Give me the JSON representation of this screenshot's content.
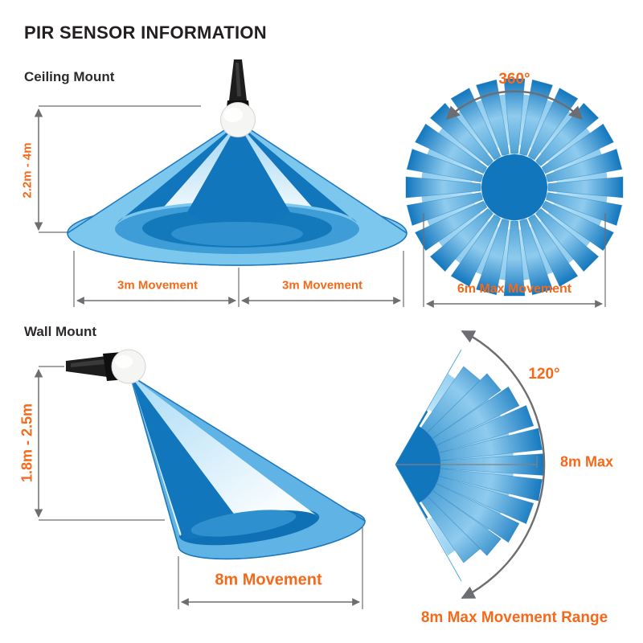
{
  "title": "PIR SENSOR INFORMATION",
  "colors": {
    "accent_orange": "#F4691A",
    "blue_dark": "#1176BC",
    "blue_medium": "#3E9DD6",
    "blue_light": "#7CC7EE",
    "line_gray": "#6D6E71"
  },
  "ceiling_mount": {
    "label": "Ceiling Mount",
    "mount_height_range": "2.2m - 4m",
    "movement_left": "3m Movement",
    "movement_right": "3m Movement",
    "top_view": {
      "coverage_angle": "360°",
      "max_movement": "6m Max Movement",
      "detection_zones": 24
    }
  },
  "wall_mount": {
    "label": "Wall Mount",
    "mount_height_range": "1.8m - 2.5m",
    "movement": "8m Movement",
    "top_view": {
      "coverage_angle": "120°",
      "max_distance": "8m Max",
      "max_movement_range": "8m Max Movement Range",
      "detection_zones": 11
    }
  }
}
